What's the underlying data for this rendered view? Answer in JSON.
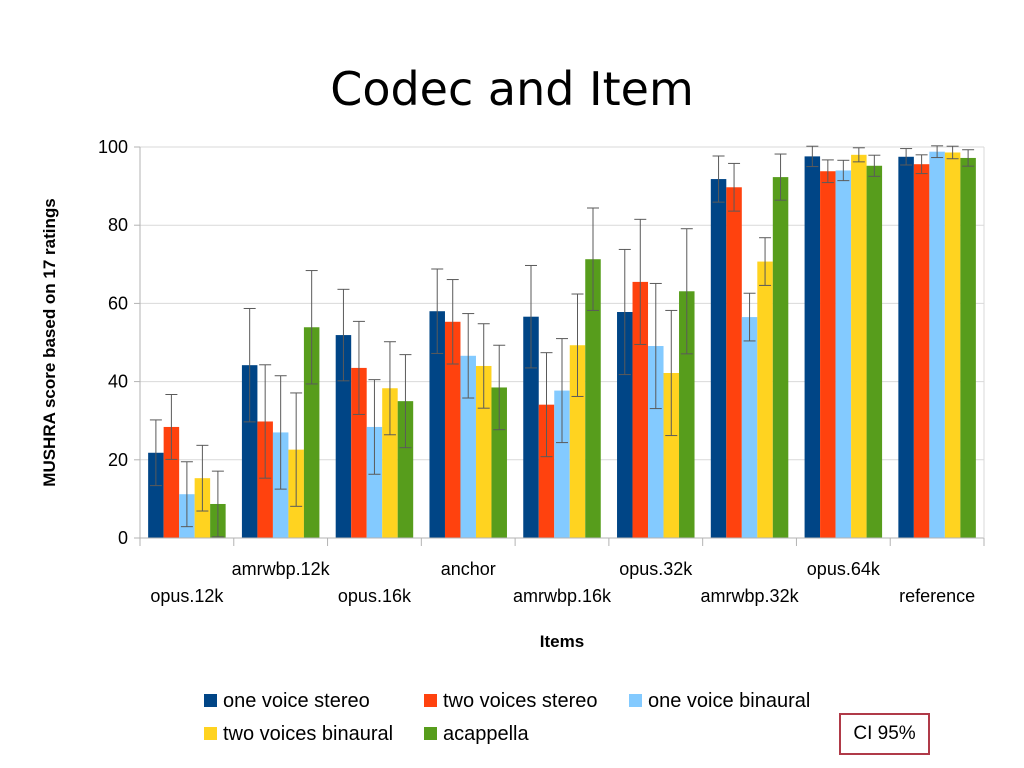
{
  "chart_data": {
    "type": "bar",
    "title": "Codec and Item",
    "xlabel": "Items",
    "ylabel": "MUSHRA score based on 17 ratings",
    "ylim": [
      0,
      100
    ],
    "yticks": [
      0,
      20,
      40,
      60,
      80,
      100
    ],
    "grid": true,
    "legend_position": "bottom",
    "categories": [
      "opus.12k",
      "amrwbp.12k",
      "opus.16k",
      "anchor",
      "amrwbp.16k",
      "opus.32k",
      "amrwbp.32k",
      "opus.64k",
      "reference"
    ],
    "series": [
      {
        "name": "one voice stereo",
        "color": "#004586",
        "values": [
          21.8,
          44.2,
          51.9,
          58.0,
          56.6,
          57.8,
          91.8,
          97.6,
          97.5
        ],
        "ci": [
          8.4,
          14.5,
          11.7,
          10.8,
          13.1,
          16.0,
          5.9,
          2.6,
          2.1
        ]
      },
      {
        "name": "two voices stereo",
        "color": "#ff420e",
        "values": [
          28.4,
          29.8,
          43.5,
          55.3,
          34.1,
          65.5,
          89.7,
          93.8,
          95.6
        ],
        "ci": [
          8.3,
          14.5,
          11.9,
          10.8,
          13.3,
          16.0,
          6.1,
          2.9,
          2.4
        ]
      },
      {
        "name": "one voice binaural",
        "color": "#83caff",
        "values": [
          11.2,
          27.0,
          28.4,
          46.6,
          37.7,
          49.1,
          56.5,
          94.0,
          98.8
        ],
        "ci": [
          8.3,
          14.5,
          12.1,
          10.8,
          13.3,
          16.0,
          6.1,
          2.6,
          1.5
        ]
      },
      {
        "name": "two voices binaural",
        "color": "#ffd320",
        "values": [
          15.3,
          22.6,
          38.3,
          44.0,
          49.3,
          42.2,
          70.7,
          98.0,
          98.6
        ],
        "ci": [
          8.4,
          14.5,
          11.9,
          10.8,
          13.1,
          16.0,
          6.1,
          1.8,
          1.6
        ]
      },
      {
        "name": "acappella",
        "color": "#579d1c",
        "values": [
          8.7,
          53.9,
          35.0,
          38.5,
          71.3,
          63.1,
          92.3,
          95.2,
          97.2
        ],
        "ci": [
          8.4,
          14.5,
          11.9,
          10.8,
          13.1,
          16.0,
          5.9,
          2.7,
          2.1
        ]
      }
    ],
    "annotation": "CI 95%"
  }
}
